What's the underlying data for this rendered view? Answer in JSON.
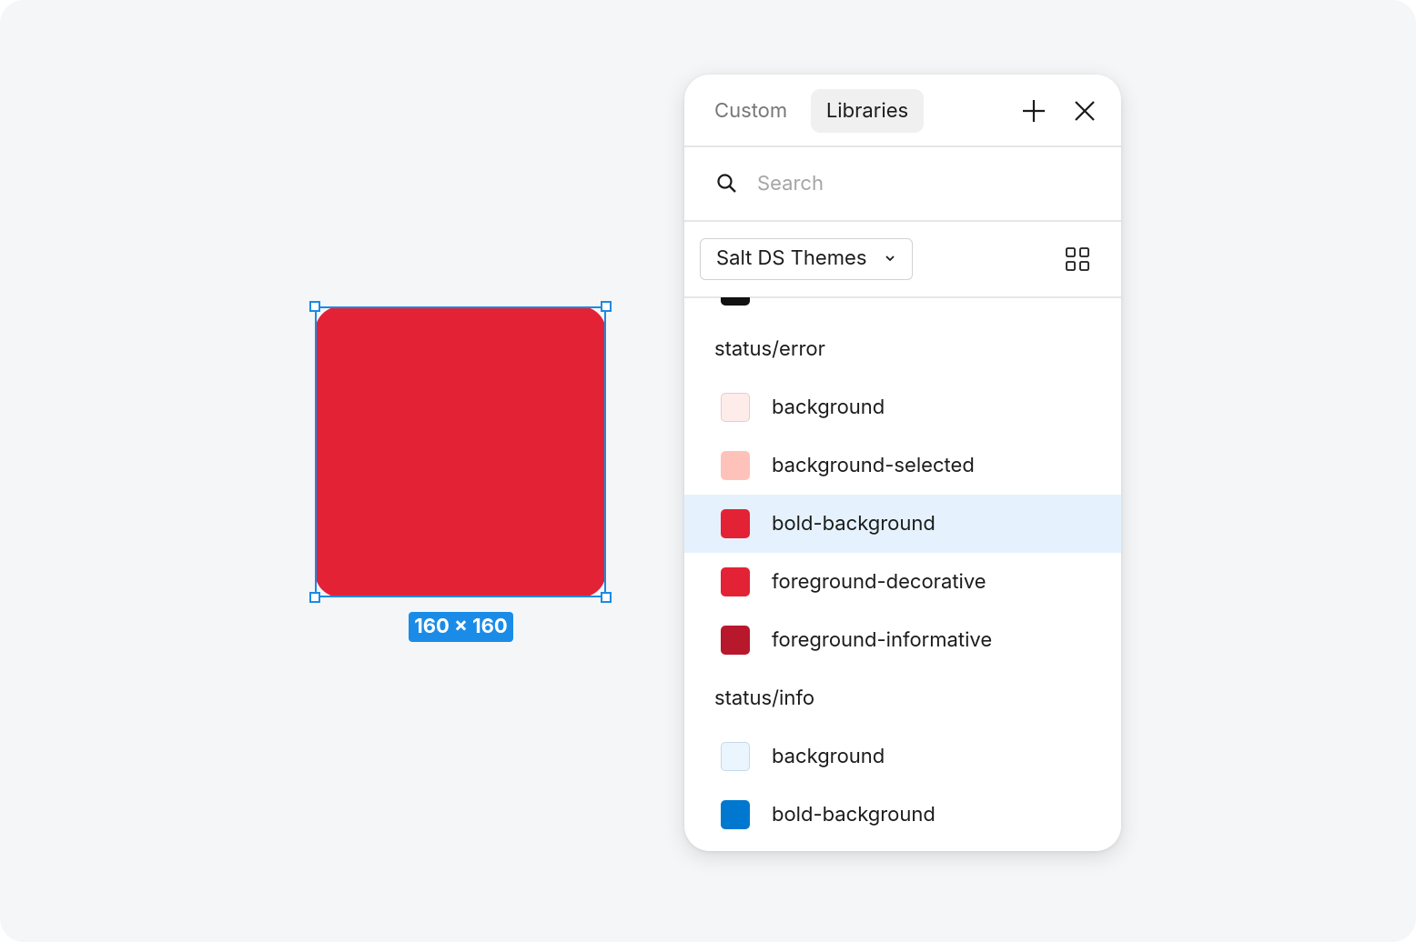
{
  "canvas": {
    "fill": "#e32236",
    "size_label": "160 × 160"
  },
  "tabs": [
    "Custom",
    "Libraries"
  ],
  "search": {
    "placeholder": "Search"
  },
  "library": "Salt DS Themes",
  "groups": [
    {
      "title": "status/error",
      "items": [
        {
          "name": "background",
          "color": "#feeceb",
          "border": "#e6cccc"
        },
        {
          "name": "background-selected",
          "color": "#ffc2bb"
        },
        {
          "name": "bold-background",
          "color": "#e32236",
          "selected": true
        },
        {
          "name": "foreground-decorative",
          "color": "#e32236"
        },
        {
          "name": "foreground-informative",
          "color": "#b8182b"
        }
      ]
    },
    {
      "title": "status/info",
      "items": [
        {
          "name": "background",
          "color": "#eaf5fe",
          "border": "#c6d9ea"
        },
        {
          "name": "bold-background",
          "color": "#0078cf"
        }
      ]
    }
  ]
}
